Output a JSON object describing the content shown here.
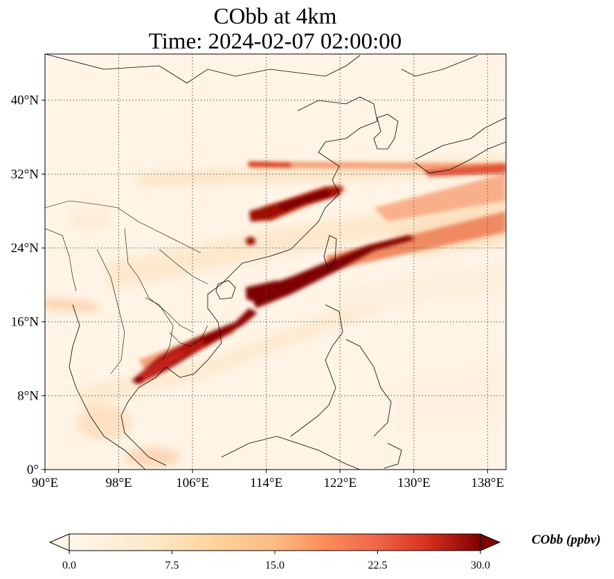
{
  "title": {
    "line1": "CObb at 4km",
    "line2": "Time: 2024-02-07 02:00:00"
  },
  "map": {
    "projection": "PlateCarree",
    "lon_range": [
      90,
      140
    ],
    "lat_range": [
      0,
      45
    ],
    "gridlines": "dotted",
    "lon_ticks": [
      {
        "value": 90,
        "label": "90°E"
      },
      {
        "value": 98,
        "label": "98°E"
      },
      {
        "value": 106,
        "label": "106°E"
      },
      {
        "value": 114,
        "label": "114°E"
      },
      {
        "value": 122,
        "label": "122°E"
      },
      {
        "value": 130,
        "label": "130°E"
      },
      {
        "value": 138,
        "label": "138°E"
      }
    ],
    "lat_ticks": [
      {
        "value": 0,
        "label": "0°"
      },
      {
        "value": 8,
        "label": "8°N"
      },
      {
        "value": 16,
        "label": "16°N"
      },
      {
        "value": 24,
        "label": "24°N"
      },
      {
        "value": 32,
        "label": "32°N"
      },
      {
        "value": 40,
        "label": "40°N"
      }
    ],
    "colormap": "OrRd",
    "colors": [
      "#fff7ec",
      "#fdd49e",
      "#fc8d59",
      "#d7301f",
      "#7f0000"
    ]
  },
  "colorbar": {
    "label": "CObb (ppbv)",
    "min": 0,
    "max": 30,
    "extend": "both",
    "ticks": [
      {
        "value": 0,
        "label": "0.0"
      },
      {
        "value": 7.5,
        "label": "7.5"
      },
      {
        "value": 15,
        "label": "15.0"
      },
      {
        "value": 22.5,
        "label": "22.5"
      },
      {
        "value": 30,
        "label": "30.0"
      }
    ]
  }
}
